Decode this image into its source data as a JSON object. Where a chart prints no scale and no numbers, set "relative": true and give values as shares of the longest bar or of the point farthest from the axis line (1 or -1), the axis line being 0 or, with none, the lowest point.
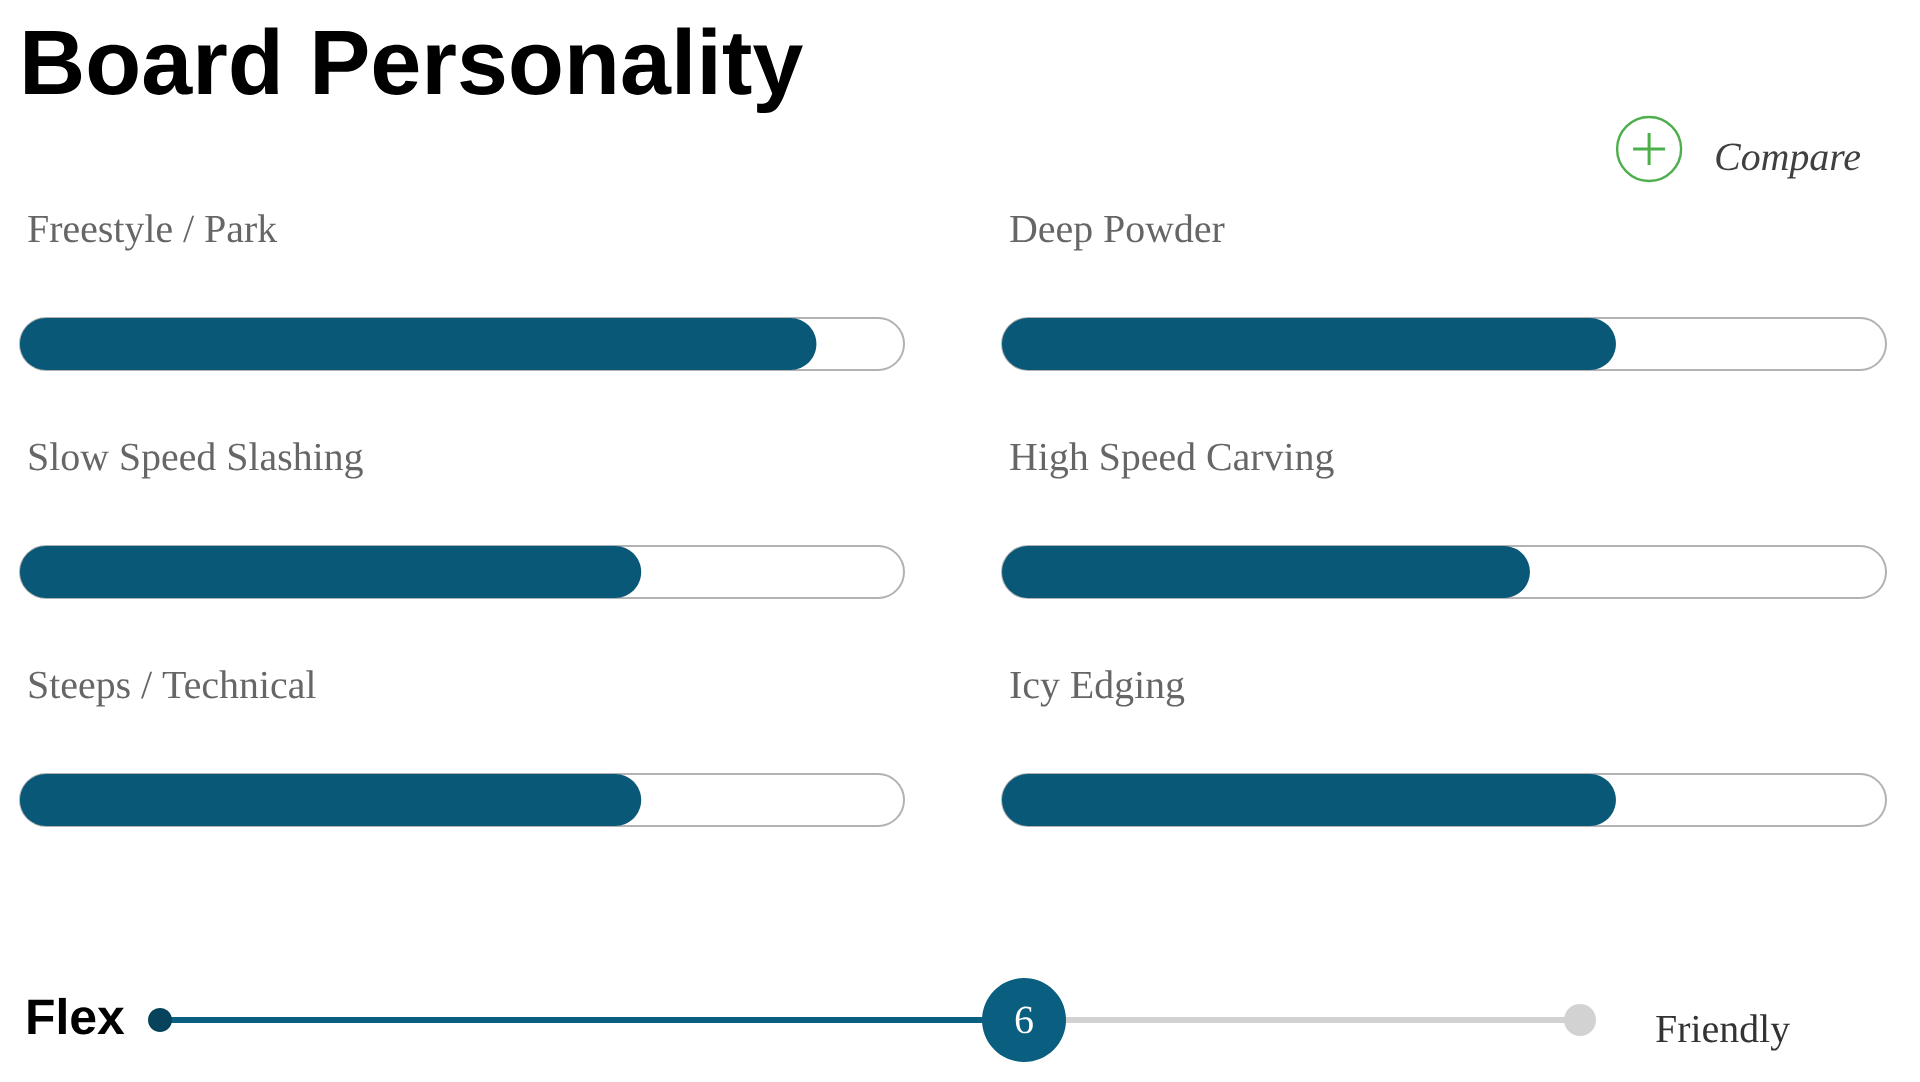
{
  "chart_data": [
    {
      "type": "bar",
      "orientation": "horizontal",
      "relative": true,
      "title": "Board Personality",
      "categories": [
        "Freestyle / Park",
        "Slow Speed Slashing",
        "Steeps / Technical"
      ],
      "values": [
        1,
        0.78,
        0.78
      ],
      "color": "#0a5878"
    },
    {
      "type": "bar",
      "orientation": "horizontal",
      "relative": true,
      "categories": [
        "Deep Powder",
        "High Speed Carving",
        "Icy Edging"
      ],
      "values": [
        1,
        0.86,
        1
      ],
      "color": "#0a5878",
      "annotations": [
        "Compare"
      ]
    },
    {
      "type": "other",
      "categories": [
        "Flex"
      ],
      "values": [
        6
      ],
      "data_labels": true,
      "color": "#0a5f80",
      "annotations": [
        "Friendly"
      ]
    }
  ]
}
